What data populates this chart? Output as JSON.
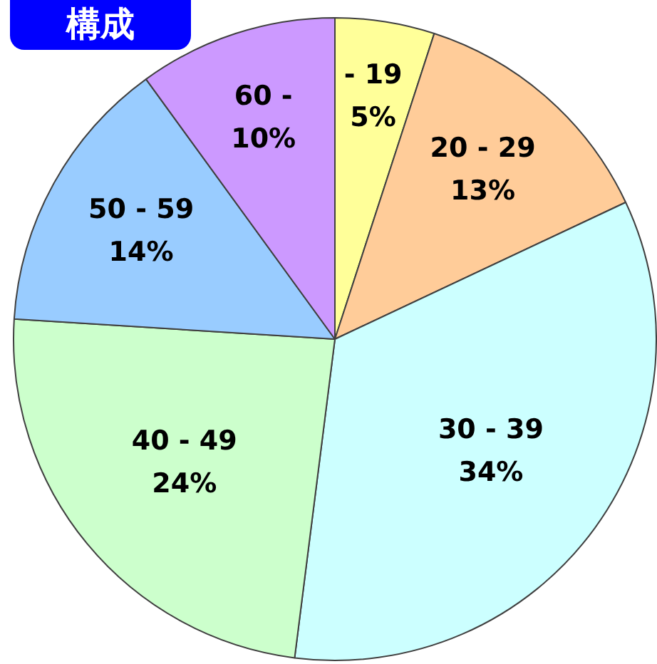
{
  "chart_data": {
    "type": "pie",
    "title": "構成",
    "categories": [
      "- 19",
      "20 - 29",
      "30 - 39",
      "40 - 49",
      "50 - 59",
      "60 -"
    ],
    "values": [
      5,
      13,
      34,
      24,
      14,
      10
    ],
    "colors": [
      "#ffff99",
      "#ffcc99",
      "#ccffff",
      "#ccffcc",
      "#99ccff",
      "#cc99ff"
    ],
    "value_labels": [
      "5%",
      "13%",
      "34%",
      "24%",
      "14%",
      "10%"
    ]
  }
}
